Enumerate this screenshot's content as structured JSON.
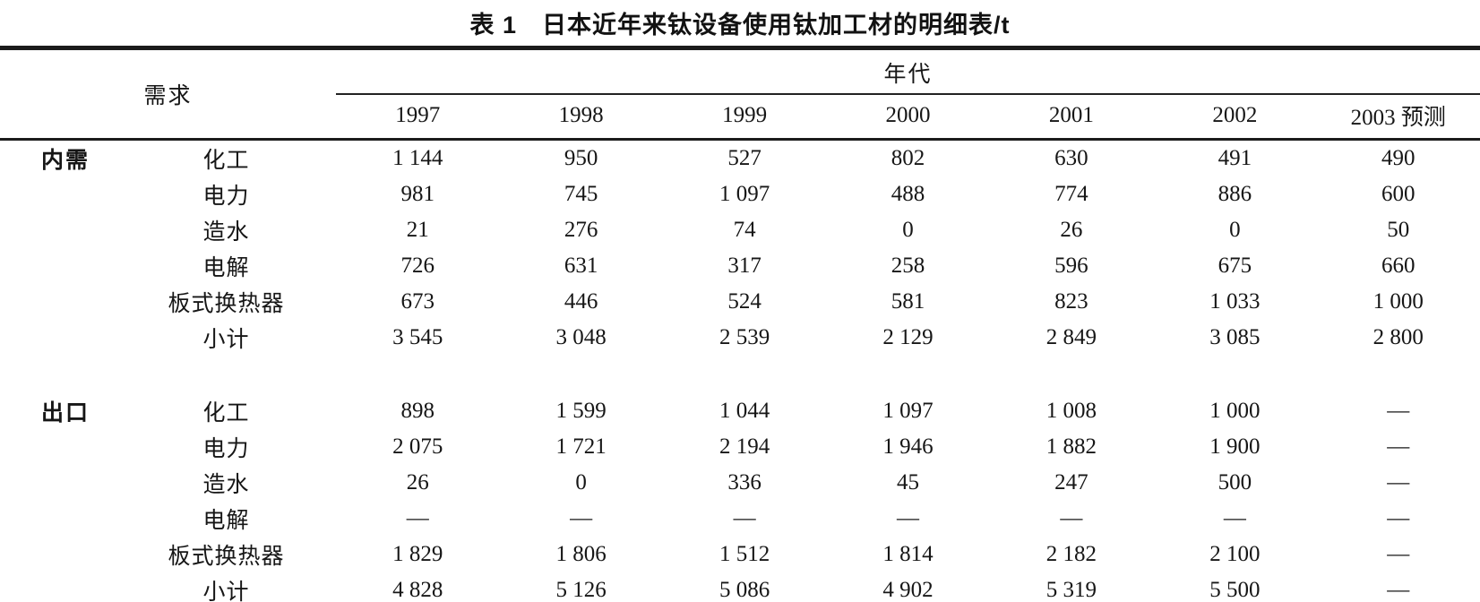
{
  "title": "表 1　日本近年来钛设备使用钛加工材的明细表/t",
  "header": {
    "demand_label": "需求",
    "era_label": "年代",
    "years": [
      "1997",
      "1998",
      "1999",
      "2000",
      "2001",
      "2002",
      "2003 预测"
    ]
  },
  "sections": [
    {
      "category": "内需",
      "rows": [
        {
          "label": "化工",
          "values": [
            "1 144",
            "950",
            "527",
            "802",
            "630",
            "491",
            "490"
          ]
        },
        {
          "label": "电力",
          "values": [
            "981",
            "745",
            "1 097",
            "488",
            "774",
            "886",
            "600"
          ]
        },
        {
          "label": "造水",
          "values": [
            "21",
            "276",
            "74",
            "0",
            "26",
            "0",
            "50"
          ]
        },
        {
          "label": "电解",
          "values": [
            "726",
            "631",
            "317",
            "258",
            "596",
            "675",
            "660"
          ]
        },
        {
          "label": "板式换热器",
          "values": [
            "673",
            "446",
            "524",
            "581",
            "823",
            "1 033",
            "1 000"
          ]
        },
        {
          "label": "小计",
          "values": [
            "3 545",
            "3 048",
            "2 539",
            "2 129",
            "2 849",
            "3 085",
            "2 800"
          ]
        }
      ]
    },
    {
      "category": "出口",
      "rows": [
        {
          "label": "化工",
          "values": [
            "898",
            "1 599",
            "1 044",
            "1 097",
            "1 008",
            "1 000",
            "—"
          ]
        },
        {
          "label": "电力",
          "values": [
            "2 075",
            "1 721",
            "2 194",
            "1 946",
            "1 882",
            "1 900",
            "—"
          ]
        },
        {
          "label": "造水",
          "values": [
            "26",
            "0",
            "336",
            "45",
            "247",
            "500",
            "—"
          ]
        },
        {
          "label": "电解",
          "values": [
            "—",
            "—",
            "—",
            "—",
            "—",
            "—",
            "—"
          ]
        },
        {
          "label": "板式换热器",
          "values": [
            "1 829",
            "1 806",
            "1 512",
            "1 814",
            "2 182",
            "2 100",
            "—"
          ]
        },
        {
          "label": "小计",
          "values": [
            "4 828",
            "5 126",
            "5 086",
            "4 902",
            "5 319",
            "5 500",
            "—"
          ]
        }
      ]
    }
  ]
}
